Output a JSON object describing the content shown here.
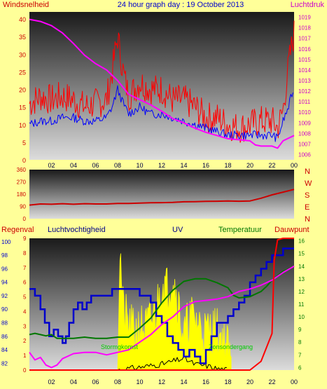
{
  "title": "24 hour graph day : 19 October 2013",
  "colors": {
    "background": "#ffff99",
    "wind": "#ff0000",
    "wind_avg": "#0000ff",
    "pressure": "#ff00ff",
    "direction": "#cc0000",
    "rain": "#ff0000",
    "humidity": "#0000cc",
    "uv": "#ffff00",
    "temperature": "#007700",
    "dewpoint": "#ff00ff",
    "solar": "#000000"
  },
  "chart_data": [
    {
      "type": "line",
      "name": "wind-pressure",
      "left_label": "Windsnelheid",
      "right_label": "Luchtdruk",
      "x_ticks": [
        "02",
        "04",
        "06",
        "08",
        "10",
        "12",
        "14",
        "16",
        "18",
        "20",
        "22",
        "00"
      ],
      "ylim_left": [
        0,
        42
      ],
      "y_ticks_left": [
        0,
        5,
        10,
        15,
        20,
        25,
        30,
        35,
        40
      ],
      "ylim_right": [
        1005.5,
        1019.5
      ],
      "y_ticks_right": [
        1006,
        1007,
        1008,
        1009,
        1010,
        1011,
        1012,
        1013,
        1014,
        1015,
        1016,
        1017,
        1018,
        1019
      ],
      "series": [
        {
          "key": "gust",
          "axis": "left",
          "x": [
            0,
            1,
            2,
            3,
            4,
            5,
            6,
            7,
            7.5,
            8,
            8.5,
            9,
            10,
            11,
            12,
            13,
            14,
            15,
            16,
            17,
            18,
            19,
            20,
            21,
            22,
            22.5,
            23,
            23.5,
            24
          ],
          "values": [
            16,
            18,
            17,
            18,
            17,
            15,
            16,
            17,
            25,
            35,
            25,
            18,
            22,
            20,
            20,
            17,
            17,
            15,
            12,
            12,
            10,
            9,
            10,
            11,
            11,
            9,
            14,
            27,
            36
          ]
        },
        {
          "key": "wind",
          "axis": "left",
          "x": [
            0,
            1,
            2,
            3,
            4,
            5,
            6,
            7,
            7.5,
            8,
            8.5,
            9,
            10,
            11,
            12,
            13,
            14,
            15,
            16,
            17,
            18,
            19,
            20,
            21,
            22,
            22.5,
            23,
            23.5,
            24
          ],
          "values": [
            10,
            11,
            11,
            12,
            12,
            11,
            11,
            12,
            15,
            20,
            16,
            13,
            15,
            13,
            13,
            12,
            11,
            10,
            9,
            8,
            7,
            7,
            7,
            7,
            7,
            6,
            11,
            15,
            21
          ]
        },
        {
          "key": "pressure",
          "axis": "right",
          "x": [
            0,
            1,
            2,
            3,
            4,
            5,
            6,
            7,
            8,
            9,
            10,
            11,
            12,
            13,
            14,
            15,
            16,
            17,
            18,
            19,
            20,
            20.5,
            21,
            22,
            22.5,
            23,
            24
          ],
          "values": [
            1018.8,
            1018.6,
            1018.2,
            1017.5,
            1016.5,
            1015.4,
            1014.6,
            1014,
            1013,
            1011.7,
            1011.2,
            1010.7,
            1010.1,
            1009.4,
            1009,
            1008.5,
            1008.1,
            1007.8,
            1007.5,
            1007.4,
            1007.3,
            1006.9,
            1006.8,
            1006.8,
            1006.6,
            1007.3,
            1007.8
          ]
        }
      ]
    },
    {
      "type": "line",
      "name": "wind-direction",
      "x_ticks": [
        "02",
        "04",
        "06",
        "08",
        "10",
        "12",
        "14",
        "16",
        "18",
        "20",
        "22",
        "00"
      ],
      "ylim": [
        0,
        360
      ],
      "y_ticks": [
        0,
        90,
        180,
        270,
        360
      ],
      "right_labels": [
        "N",
        "W",
        "S",
        "E",
        "N"
      ],
      "series": [
        {
          "key": "direction",
          "x": [
            0,
            1,
            2,
            3,
            4,
            5,
            6,
            7,
            8,
            9,
            10,
            11,
            12,
            13,
            14,
            15,
            16,
            17,
            18,
            19,
            20,
            21,
            22,
            23,
            24
          ],
          "values": [
            100,
            108,
            106,
            110,
            106,
            110,
            108,
            108,
            112,
            112,
            114,
            117,
            118,
            120,
            124,
            125,
            127,
            128,
            130,
            128,
            130,
            150,
            175,
            195,
            215
          ]
        }
      ]
    },
    {
      "type": "line",
      "name": "multi",
      "labels": [
        "Regenval",
        "Luchtvochtigheid",
        "UV",
        "Temperatuur",
        "Dauwpunt"
      ],
      "inner_labels": [
        "Stormgkomst",
        "Zonsondergang"
      ],
      "x_ticks": [
        "02",
        "04",
        "06",
        "08",
        "10",
        "12",
        "14",
        "16",
        "18",
        "20",
        "22",
        "00"
      ],
      "ylim_left": [
        81,
        100.5
      ],
      "y_ticks_left": [
        82,
        84,
        86,
        88,
        90,
        92,
        94,
        96,
        98,
        100
      ],
      "ylim_left2": [
        0,
        9
      ],
      "y_ticks_left2": [
        0,
        1,
        2,
        3,
        4,
        5,
        6,
        7,
        8,
        9
      ],
      "ylim_right": [
        5.8,
        16.2
      ],
      "y_ticks_right": [
        6,
        7,
        8,
        9,
        10,
        11,
        12,
        13,
        14,
        15,
        16
      ],
      "series": [
        {
          "key": "humidity",
          "axis": "left",
          "x": [
            0,
            0.5,
            1,
            1.4,
            1.8,
            2.2,
            2.6,
            3,
            3.3,
            3.6,
            4,
            4.4,
            4.8,
            5.2,
            5.6,
            6,
            6.5,
            7,
            7.5,
            8,
            8.3,
            8.7,
            9,
            9.5,
            10,
            10.5,
            11,
            11.5,
            12,
            12.5,
            13,
            13.5,
            14,
            14.5,
            15,
            15.5,
            16,
            16.5,
            17,
            17.5,
            18,
            18.5,
            19,
            19.5,
            20,
            20.5,
            21,
            21.5,
            22,
            22.5,
            23,
            23.5,
            24
          ],
          "values": [
            93,
            92,
            90,
            88,
            86,
            87,
            86,
            85,
            86,
            88,
            90,
            91,
            90,
            91,
            92,
            92,
            92,
            92,
            93,
            93,
            93,
            93,
            93,
            93,
            92,
            92,
            91,
            89,
            88,
            86,
            85,
            84,
            83,
            84,
            83,
            82,
            84,
            86,
            88,
            88,
            89,
            90,
            91,
            92,
            94,
            95,
            96,
            97,
            98,
            98,
            99,
            99,
            99
          ]
        },
        {
          "key": "rain",
          "axis": "left2",
          "x": [
            0,
            8,
            9,
            10,
            11,
            12,
            13,
            14,
            15,
            16,
            17,
            18,
            19,
            20,
            21,
            22,
            22.2,
            22.5,
            23,
            24
          ],
          "values": [
            0,
            0,
            0,
            0,
            0,
            0,
            0,
            0,
            0,
            0,
            0,
            0,
            0,
            0,
            0.6,
            2.5,
            7.5,
            8.9,
            9,
            9
          ]
        },
        {
          "key": "temperature",
          "axis": "right",
          "x": [
            0,
            0.5,
            1,
            1.5,
            2,
            2.5,
            3,
            4,
            5,
            6,
            7,
            8,
            9,
            10,
            11,
            12,
            13,
            14,
            15,
            16,
            17,
            18,
            18.5,
            19,
            20,
            21,
            21.5,
            22,
            23,
            24
          ],
          "values": [
            8.6,
            8.7,
            8.6,
            8.5,
            8.6,
            8.3,
            8.3,
            8.3,
            8.4,
            8.3,
            8.3,
            8.4,
            8.4,
            9.1,
            9.9,
            11.1,
            12.1,
            12.8,
            13,
            13,
            12.7,
            12.3,
            11.7,
            11.5,
            11.6,
            12,
            12.4,
            12.9,
            13.6,
            14
          ]
        },
        {
          "key": "dewpoint",
          "axis": "right",
          "x": [
            0,
            0.5,
            1,
            1.5,
            2,
            2.5,
            3,
            4,
            5,
            6,
            7,
            8,
            9,
            10,
            11,
            12,
            13,
            14,
            15,
            16,
            17,
            18,
            19,
            20,
            21,
            22,
            23,
            24
          ],
          "values": [
            7.2,
            6.6,
            6.8,
            6.2,
            6.0,
            6.2,
            6.7,
            7.1,
            7.2,
            7.2,
            7,
            7.2,
            7.4,
            8,
            8.6,
            9.4,
            10,
            10.8,
            11.2,
            11.3,
            11.4,
            11.6,
            12,
            12.2,
            12.5,
            12.9,
            13.5,
            14
          ]
        },
        {
          "key": "uv",
          "axis": "left2",
          "x": [
            8,
            8.2,
            8.5,
            9,
            9.5,
            10,
            10.5,
            11,
            11.5,
            12,
            12.5,
            13,
            13.5,
            14,
            14.5,
            15,
            15.5,
            16,
            16.5,
            17,
            17.5,
            18,
            18.3
          ],
          "values": [
            0,
            8.5,
            4,
            3,
            2.5,
            3,
            2.7,
            3.3,
            4,
            6,
            5.5,
            6.5,
            4.5,
            2.2,
            3.5,
            3.5,
            3,
            2.5,
            2.8,
            2.6,
            2.2,
            1.5,
            0
          ]
        },
        {
          "key": "solar",
          "axis": "left2",
          "x": [
            8,
            9,
            10,
            11,
            12,
            13,
            14,
            15,
            16,
            17,
            18
          ],
          "values": [
            0,
            0.1,
            0.2,
            0.3,
            0.4,
            0.6,
            0.8,
            0.4,
            0.3,
            0.1,
            0
          ]
        }
      ]
    }
  ]
}
